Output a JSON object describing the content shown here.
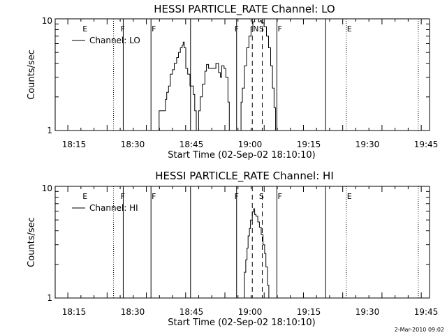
{
  "colors": {
    "background": "#ffffff",
    "foreground": "#000000"
  },
  "timestamp": "2-Mar-2010 09:02",
  "chart_data": [
    {
      "type": "line",
      "title": "HESSI PARTICLE_RATE Channel: LO",
      "xlabel": "Start Time (02-Sep-02 18:10:10)",
      "ylabel": "Counts/sec",
      "y_scale": "log",
      "ylim": [
        1,
        10
      ],
      "y_ticks": [
        "1",
        "10"
      ],
      "x_ticks": [
        "18:15",
        "18:30",
        "18:45",
        "19:00",
        "19:15",
        "19:30",
        "19:45"
      ],
      "legend": "Channel: LO",
      "legend_position": "top-left",
      "series": [
        {
          "name": "Channel: LO",
          "points": [
            [
              39.3,
              1.0
            ],
            [
              39.7,
              1.5
            ],
            [
              41.3,
              1.5
            ],
            [
              42.1,
              1.9
            ],
            [
              42.6,
              2.2
            ],
            [
              43.3,
              2.5
            ],
            [
              44.0,
              3.2
            ],
            [
              44.8,
              3.5
            ],
            [
              45.5,
              4.0
            ],
            [
              46.4,
              4.5
            ],
            [
              47.1,
              5.0
            ],
            [
              47.8,
              5.5
            ],
            [
              48.5,
              5.8
            ],
            [
              48.9,
              6.2
            ],
            [
              49.3,
              5.5
            ],
            [
              49.9,
              3.6
            ],
            [
              50.6,
              3.2
            ],
            [
              51.5,
              2.5
            ],
            [
              52.8,
              2.1
            ],
            [
              53.3,
              1.5
            ],
            [
              53.9,
              1.0
            ],
            [
              54.8,
              1.5
            ],
            [
              55.4,
              2.0
            ],
            [
              56.2,
              2.6
            ],
            [
              57.2,
              3.4
            ],
            [
              57.8,
              3.9
            ],
            [
              58.6,
              3.6
            ],
            [
              59.1,
              3.6
            ],
            [
              60.3,
              3.6
            ],
            [
              61.4,
              4.0
            ],
            [
              62.4,
              3.3
            ],
            [
              63.1,
              3.0
            ],
            [
              63.6,
              3.8
            ],
            [
              64.5,
              3.6
            ],
            [
              65.2,
              3.0
            ],
            [
              66.0,
              1.8
            ],
            [
              66.5,
              1.0
            ],
            [
              70.4,
              1.0
            ],
            [
              71.0,
              1.8
            ],
            [
              71.5,
              2.4
            ],
            [
              72.3,
              3.8
            ],
            [
              73.1,
              5.5
            ],
            [
              74.0,
              7.0
            ],
            [
              74.8,
              8.5
            ],
            [
              75.5,
              9.4
            ],
            [
              76.2,
              10.0
            ],
            [
              77.1,
              10.0
            ],
            [
              77.7,
              9.4
            ],
            [
              78.3,
              9.6
            ],
            [
              78.9,
              9.2
            ],
            [
              79.8,
              8.5
            ],
            [
              80.7,
              7.0
            ],
            [
              81.5,
              5.5
            ],
            [
              82.3,
              3.8
            ],
            [
              83.0,
              2.4
            ],
            [
              83.6,
              1.6
            ],
            [
              84.2,
              1.0
            ]
          ]
        }
      ],
      "solid_lines_x": [
        26.0,
        36.6,
        51.7,
        69.3,
        84.7,
        103.3
      ],
      "dotted_lines_x": [
        22.3,
        111.2,
        138.7
      ],
      "dashed_lines_x": [
        75.3,
        79.1
      ],
      "flags": [
        {
          "text": "E",
          "x": 10.2
        },
        {
          "text": "F",
          "x": 24.7
        },
        {
          "text": "F",
          "x": 36.6
        },
        {
          "text": "F",
          "x": 68.2
        },
        {
          "text": "N",
          "x": 75.3
        },
        {
          "text": "S",
          "x": 77.6
        },
        {
          "text": "F",
          "x": 84.7
        },
        {
          "text": "E",
          "x": 111.2
        }
      ]
    },
    {
      "type": "line",
      "title": "HESSI PARTICLE_RATE Channel: HI",
      "xlabel": "Start Time (02-Sep-02 18:10:10)",
      "ylabel": "Counts/sec",
      "y_scale": "log",
      "ylim": [
        1,
        10
      ],
      "y_ticks": [
        "1",
        "10"
      ],
      "x_ticks": [
        "18:15",
        "18:30",
        "18:45",
        "19:00",
        "19:15",
        "19:30",
        "19:45"
      ],
      "legend": "Channel: HI",
      "legend_position": "top-left",
      "series": [
        {
          "name": "Channel: HI",
          "points": [
            [
              71.8,
              1.0
            ],
            [
              72.3,
              1.7
            ],
            [
              72.8,
              2.2
            ],
            [
              73.3,
              2.8
            ],
            [
              73.7,
              3.6
            ],
            [
              74.2,
              4.2
            ],
            [
              74.6,
              5.0
            ],
            [
              75.3,
              5.9
            ],
            [
              75.8,
              6.3
            ],
            [
              76.2,
              5.6
            ],
            [
              76.7,
              5.4
            ],
            [
              77.4,
              4.8
            ],
            [
              78.0,
              4.3
            ],
            [
              78.7,
              3.7
            ],
            [
              79.4,
              3.0
            ],
            [
              80.0,
              2.5
            ],
            [
              80.5,
              1.9
            ],
            [
              81.1,
              1.3
            ],
            [
              81.6,
              1.0
            ]
          ]
        }
      ],
      "solid_lines_x": [
        26.0,
        36.6,
        51.7,
        69.3,
        84.7,
        103.3
      ],
      "dotted_lines_x": [
        22.3,
        111.2,
        138.7
      ],
      "dashed_lines_x": [
        75.3,
        79.1
      ],
      "flags": [
        {
          "text": "E",
          "x": 10.2
        },
        {
          "text": "F",
          "x": 24.7
        },
        {
          "text": "F",
          "x": 36.6
        },
        {
          "text": "F",
          "x": 68.2
        },
        {
          "text": "S",
          "x": 77.6
        },
        {
          "text": "F",
          "x": 84.7
        },
        {
          "text": "E",
          "x": 111.2
        }
      ]
    }
  ]
}
